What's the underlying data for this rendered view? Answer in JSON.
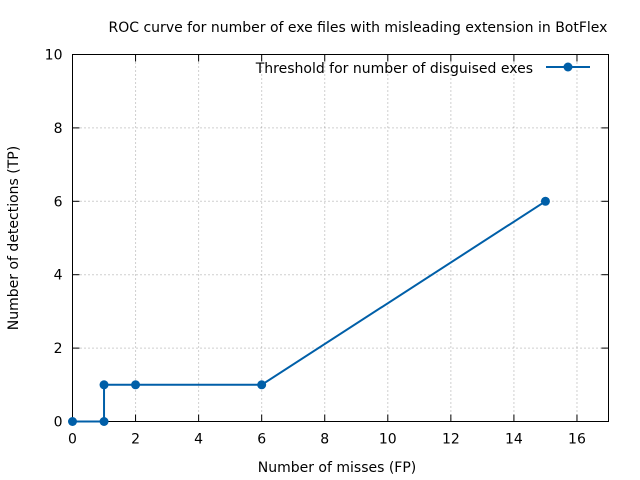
{
  "chart_data": {
    "type": "line",
    "title": "ROC curve for number of exe files with misleading extension in BotFlex",
    "xlabel": "Number of misses (FP)",
    "ylabel": "Number of detections (TP)",
    "xlim": [
      0,
      17
    ],
    "ylim": [
      0,
      10
    ],
    "xticks": [
      "0",
      "2",
      "4",
      "6",
      "8",
      "10",
      "12",
      "14",
      "16"
    ],
    "yticks": [
      "0",
      "2",
      "4",
      "6",
      "8",
      "10"
    ],
    "grid": true,
    "legend_position": "top-right",
    "series": [
      {
        "name": "Threshold for number of disguised exes",
        "color": "#005fa8",
        "marker": "circle",
        "points": [
          {
            "x": 0,
            "y": 0
          },
          {
            "x": 1,
            "y": 0
          },
          {
            "x": 1,
            "y": 1
          },
          {
            "x": 2,
            "y": 1
          },
          {
            "x": 6,
            "y": 1
          },
          {
            "x": 15,
            "y": 6
          }
        ]
      }
    ]
  }
}
